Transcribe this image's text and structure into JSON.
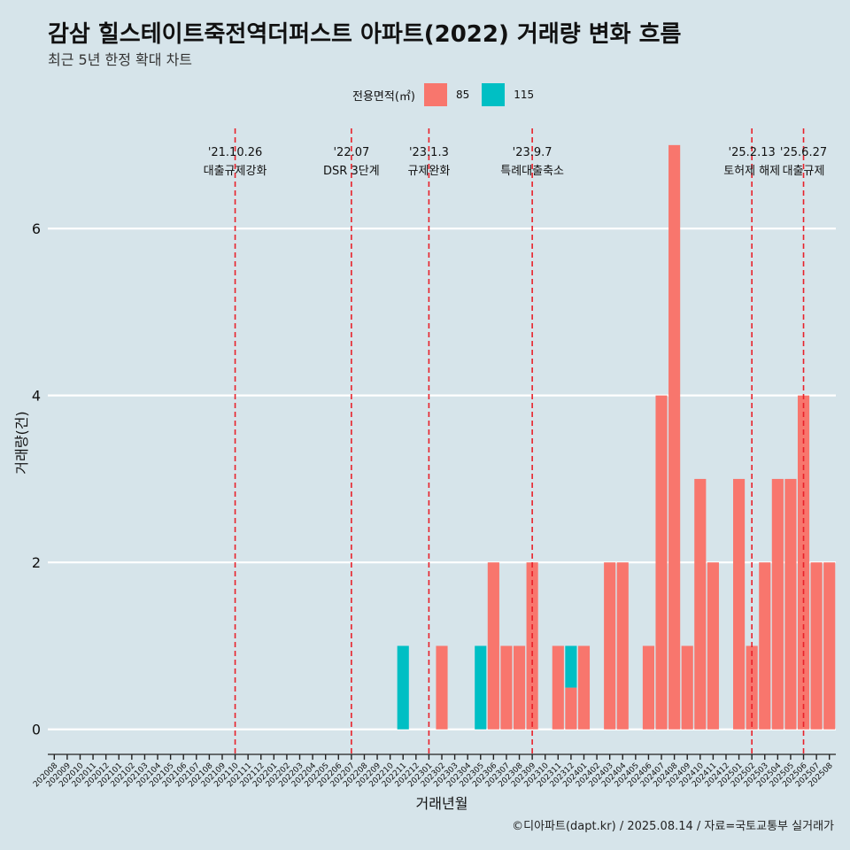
{
  "title": "감삼 힐스테이트죽전역더퍼스트 아파트(2022) 거래량 변화 흐름",
  "subtitle": "최근 5년 한정 확대 차트",
  "caption": "©디아파트(dapt.kr) / 2025.08.14 / 자료=국토교통부 실거래가",
  "legend": {
    "title": "전용면적(㎡)",
    "items": [
      {
        "label": "85",
        "color": "#f8766d"
      },
      {
        "label": "115",
        "color": "#00bfc4"
      }
    ]
  },
  "chart_data": {
    "type": "bar",
    "stacked": true,
    "xlabel": "거래년월",
    "ylabel": "거래량(건)",
    "ylim": [
      -0.3,
      7.2
    ],
    "yticks": [
      0,
      2,
      4,
      6
    ],
    "grid": true,
    "legend_position": "top",
    "categories": [
      "202008",
      "202009",
      "202010",
      "202011",
      "202012",
      "202101",
      "202102",
      "202103",
      "202104",
      "202105",
      "202106",
      "202107",
      "202108",
      "202109",
      "202110",
      "202111",
      "202112",
      "202201",
      "202202",
      "202203",
      "202204",
      "202205",
      "202206",
      "202207",
      "202208",
      "202209",
      "202210",
      "202211",
      "202212",
      "202301",
      "202302",
      "202303",
      "202304",
      "202305",
      "202306",
      "202307",
      "202308",
      "202309",
      "202310",
      "202311",
      "202312",
      "202401",
      "202402",
      "202403",
      "202404",
      "202405",
      "202406",
      "202407",
      "202408",
      "202409",
      "202410",
      "202411",
      "202412",
      "202501",
      "202502",
      "202503",
      "202504",
      "202505",
      "202506",
      "202507",
      "202508"
    ],
    "series": [
      {
        "name": "85",
        "color": "#f8766d",
        "values": [
          0,
          0,
          0,
          0,
          0,
          0,
          0,
          0,
          0,
          0,
          0,
          0,
          0,
          0,
          0,
          0,
          0,
          0,
          0,
          0,
          0,
          0,
          0,
          0,
          0,
          0,
          0,
          0,
          0,
          0,
          1,
          0,
          0,
          0,
          2,
          1,
          1,
          2,
          0,
          1,
          0.5,
          1,
          0,
          2,
          2,
          0,
          1,
          4,
          7,
          1,
          3,
          2,
          0,
          3,
          1,
          2,
          3,
          3,
          4,
          2,
          2
        ]
      },
      {
        "name": "115",
        "color": "#00bfc4",
        "values": [
          0,
          0,
          0,
          0,
          0,
          0,
          0,
          0,
          0,
          0,
          0,
          0,
          0,
          0,
          0,
          0,
          0,
          0,
          0,
          0,
          0,
          0,
          0,
          0,
          0,
          0,
          0,
          1,
          0,
          0,
          0,
          0,
          0,
          1,
          0,
          0,
          0,
          0,
          0,
          0,
          0.5,
          0,
          0,
          0,
          0,
          0,
          0,
          0,
          0,
          0,
          0,
          0,
          0,
          0,
          0,
          0,
          0,
          0,
          0,
          0,
          0
        ]
      }
    ],
    "events": [
      {
        "date": "'21.10.26",
        "label": "대출규제강화",
        "category": "202110"
      },
      {
        "date": "'22.07",
        "label": "DSR 3단계",
        "category": "202207"
      },
      {
        "date": "'23.1.3",
        "label": "규제완화",
        "category": "202301"
      },
      {
        "date": "'23.9.7",
        "label": "특례대출축소",
        "category": "202309"
      },
      {
        "date": "'25.2.13",
        "label": "토허제 해제",
        "category": "202502"
      },
      {
        "date": "'25.6.27",
        "label": "대출규제",
        "category": "202506"
      }
    ]
  }
}
